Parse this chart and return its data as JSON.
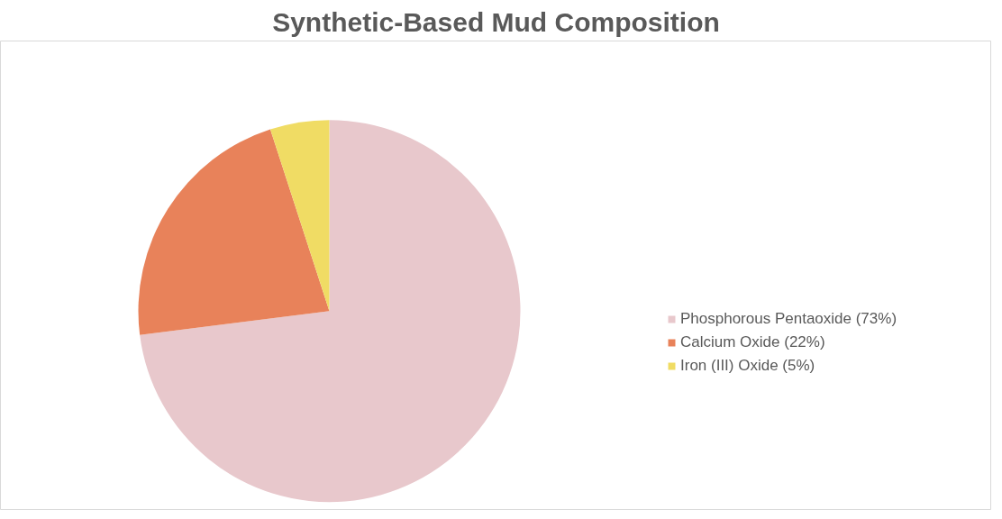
{
  "chart_data": {
    "type": "pie",
    "title": "Synthetic-Based Mud Composition",
    "categories": [
      "Phosphorous Pentaoxide (73%)",
      "Calcium Oxide (22%)",
      "Iron (III) Oxide (5%)"
    ],
    "values": [
      73,
      22,
      5
    ],
    "colors": [
      "#e8c8cc",
      "#e8825a",
      "#f0dc64"
    ],
    "legend": "right"
  }
}
